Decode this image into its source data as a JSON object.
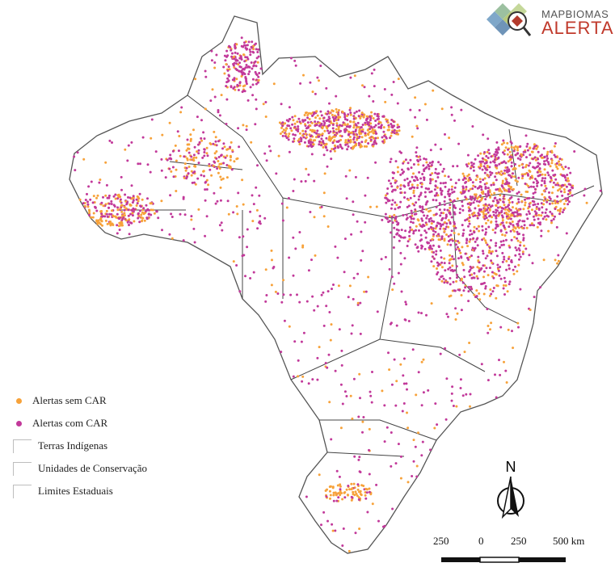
{
  "legend": {
    "items": [
      {
        "label": "Alertas sem CAR",
        "color": "#f7a23a",
        "kind": "dot"
      },
      {
        "label": "Alertas com CAR",
        "color": "#c2399a",
        "kind": "dot"
      },
      {
        "label": "Terras Indígenas",
        "kind": "box"
      },
      {
        "label": "Unidades de Conservação",
        "kind": "box"
      },
      {
        "label": "Limites Estaduais",
        "kind": "box"
      }
    ]
  },
  "logo": {
    "line1": "MAPBIOMAS",
    "line2": "ALERTA"
  },
  "north_arrow": {
    "label": "N"
  },
  "scale_bar": {
    "labels": [
      "250",
      "0",
      "250",
      "500 km"
    ]
  }
}
